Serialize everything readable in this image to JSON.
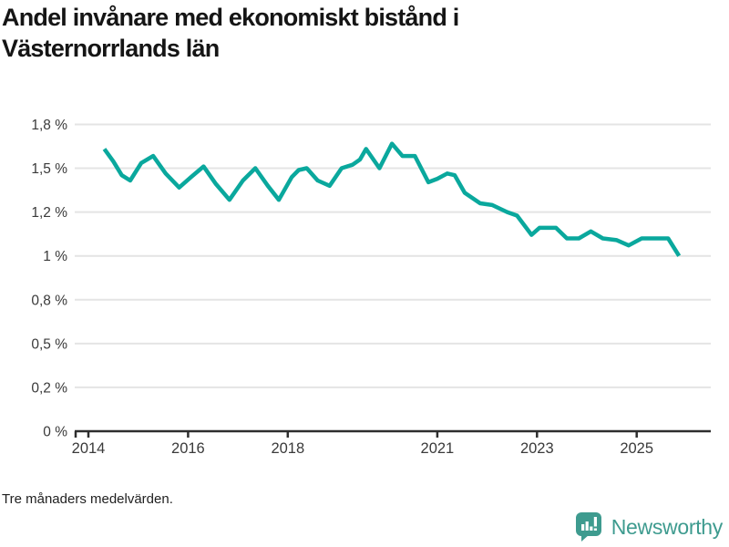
{
  "header": {
    "title_line1": "Andel invånare med ekonomiskt bistånd i",
    "title_line2": "Västernorrlands län"
  },
  "footer": {
    "note": "Tre månaders medelvärden.",
    "brand": "Newsworthy"
  },
  "colors": {
    "line": "#0aa89d",
    "grid": "#e4e4e4",
    "axis": "#2e2e2e",
    "tick_label": "#3a3a3a",
    "brand_teal": "#3e9b8f",
    "background": "#ffffff"
  },
  "chart_data": {
    "type": "line",
    "title": "Andel invånare med ekonomiskt bistånd i Västernorrlands län",
    "xlabel": "",
    "ylabel": "",
    "footnote": "Tre månaders medelvärden.",
    "grid": true,
    "legend": "none",
    "xlim": [
      2013.73,
      2026.49
    ],
    "ylim": [
      0,
      1.875
    ],
    "y_unit": "%",
    "y_ticks": [
      {
        "value": 1.75,
        "label": "1,8 %"
      },
      {
        "value": 1.5,
        "label": "1,5 %"
      },
      {
        "value": 1.25,
        "label": "1,2 %"
      },
      {
        "value": 1.0,
        "label": "1 %"
      },
      {
        "value": 0.75,
        "label": "0,8 %"
      },
      {
        "value": 0.5,
        "label": "0,5 %"
      },
      {
        "value": 0.25,
        "label": "0,2 %"
      },
      {
        "value": 0,
        "label": "0 %"
      }
    ],
    "x_ticks": [
      {
        "value": 2014,
        "label": "2014"
      },
      {
        "value": 2016,
        "label": "2016"
      },
      {
        "value": 2018,
        "label": "2018"
      },
      {
        "value": 2021,
        "label": "2021"
      },
      {
        "value": 2023,
        "label": "2023"
      },
      {
        "value": 2025,
        "label": "2025"
      }
    ],
    "series": [
      {
        "name": "Andel invånare med ekonomiskt bistånd",
        "x": [
          2014.32,
          2014.5,
          2014.67,
          2014.84,
          2015.06,
          2015.3,
          2015.55,
          2015.82,
          2016.06,
          2016.31,
          2016.56,
          2016.83,
          2017.1,
          2017.35,
          2017.6,
          2017.82,
          2018.08,
          2018.22,
          2018.38,
          2018.6,
          2018.84,
          2019.08,
          2019.3,
          2019.45,
          2019.57,
          2019.84,
          2020.09,
          2020.3,
          2020.55,
          2020.82,
          2021.0,
          2021.2,
          2021.35,
          2021.55,
          2021.86,
          2022.1,
          2022.4,
          2022.6,
          2022.89,
          2023.05,
          2023.38,
          2023.6,
          2023.84,
          2024.08,
          2024.32,
          2024.6,
          2024.84,
          2025.1,
          2025.63,
          2025.85
        ],
        "y": [
          1.61,
          1.54,
          1.46,
          1.43,
          1.53,
          1.57,
          1.47,
          1.39,
          1.45,
          1.51,
          1.41,
          1.32,
          1.43,
          1.5,
          1.4,
          1.32,
          1.45,
          1.49,
          1.5,
          1.43,
          1.4,
          1.5,
          1.52,
          1.55,
          1.61,
          1.5,
          1.64,
          1.57,
          1.57,
          1.42,
          1.44,
          1.47,
          1.46,
          1.36,
          1.3,
          1.29,
          1.25,
          1.23,
          1.12,
          1.16,
          1.16,
          1.1,
          1.1,
          1.14,
          1.1,
          1.09,
          1.06,
          1.1,
          1.1,
          1.0
        ]
      }
    ]
  }
}
